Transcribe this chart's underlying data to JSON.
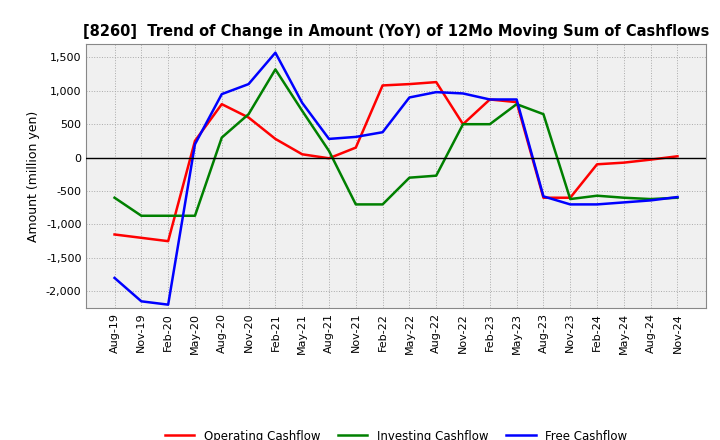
{
  "title": "[8260]  Trend of Change in Amount (YoY) of 12Mo Moving Sum of Cashflows",
  "ylabel": "Amount (million yen)",
  "x_labels": [
    "Aug-19",
    "Nov-19",
    "Feb-20",
    "May-20",
    "Aug-20",
    "Nov-20",
    "Feb-21",
    "May-21",
    "Aug-21",
    "Nov-21",
    "Feb-22",
    "May-22",
    "Aug-22",
    "Nov-22",
    "Feb-23",
    "May-23",
    "Aug-23",
    "Nov-23",
    "Feb-24",
    "May-24",
    "Aug-24",
    "Nov-24"
  ],
  "operating": [
    -1150,
    -1200,
    -1250,
    250,
    800,
    600,
    280,
    50,
    -10,
    150,
    1080,
    1100,
    1130,
    500,
    870,
    830,
    -600,
    -600,
    -100,
    -75,
    -30,
    20
  ],
  "investing": [
    -600,
    -870,
    -870,
    -870,
    300,
    650,
    1320,
    700,
    100,
    -700,
    -700,
    -300,
    -270,
    500,
    500,
    800,
    650,
    -620,
    -570,
    -600,
    -620,
    -600
  ],
  "free": [
    -1800,
    -2150,
    -2200,
    200,
    950,
    1100,
    1570,
    820,
    280,
    310,
    380,
    900,
    980,
    960,
    870,
    870,
    -580,
    -700,
    -700,
    -670,
    -640,
    -590
  ],
  "ylim": [
    -2250,
    1700
  ],
  "yticks": [
    -2000,
    -1500,
    -1000,
    -500,
    0,
    500,
    1000,
    1500
  ],
  "operating_color": "#ff0000",
  "investing_color": "#008000",
  "free_color": "#0000ff",
  "bg_color": "#ffffff",
  "plot_bg_color": "#f0f0f0",
  "grid_color": "#aaaaaa",
  "legend_labels": [
    "Operating Cashflow",
    "Investing Cashflow",
    "Free Cashflow"
  ]
}
